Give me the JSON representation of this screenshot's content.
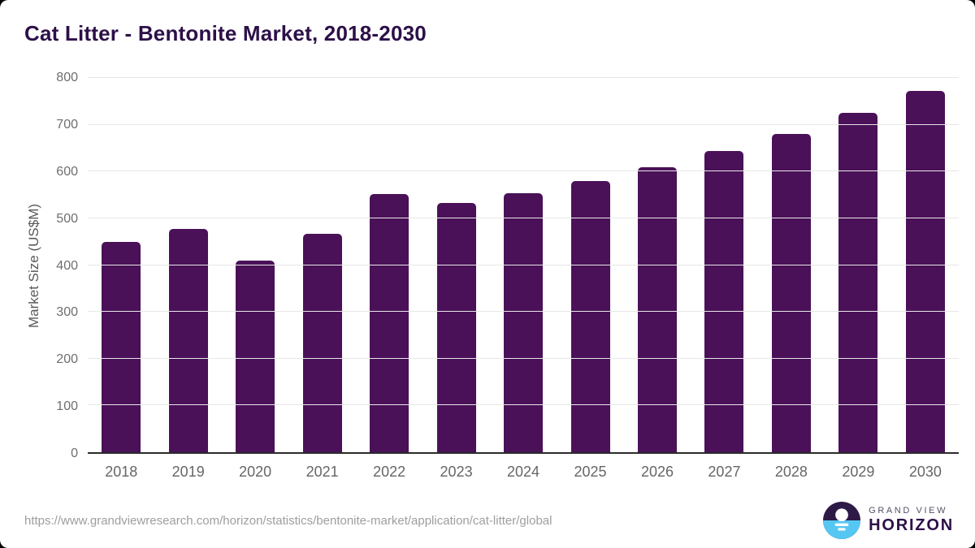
{
  "chart_data": {
    "type": "bar",
    "title": "Cat Litter - Bentonite Market, 2018-2030",
    "ylabel": "Market Size (US$M)",
    "xlabel": "",
    "categories": [
      "2018",
      "2019",
      "2020",
      "2021",
      "2022",
      "2023",
      "2024",
      "2025",
      "2026",
      "2027",
      "2028",
      "2029",
      "2030"
    ],
    "values": [
      450,
      478,
      410,
      466,
      552,
      533,
      554,
      580,
      609,
      643,
      681,
      726,
      773
    ],
    "ylim": [
      0,
      800
    ],
    "yticks": [
      0,
      100,
      200,
      300,
      400,
      500,
      600,
      700,
      800
    ],
    "grid": true,
    "legend": false,
    "bar_color": "#4a1158",
    "gridline_color": "#e7e7e7",
    "baseline_color": "#2b2b2b",
    "title_color": "#2d1048",
    "tick_color": "#6e6e6e"
  },
  "footer": {
    "source_url": "https://www.grandviewresearch.com/horizon/statistics/bentonite-market/application/cat-litter/global",
    "logo": {
      "line1": "GRAND VIEW",
      "line2": "HORIZON",
      "mark_dark_color": "#2e1a47",
      "mark_blue_color": "#56c7f3"
    }
  }
}
